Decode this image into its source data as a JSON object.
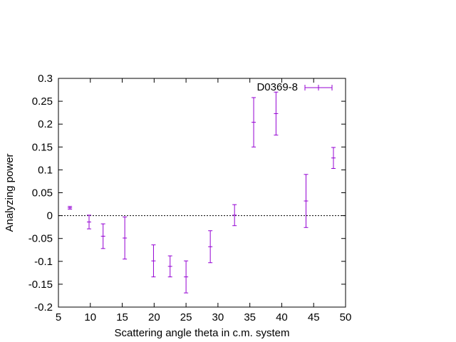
{
  "chart_data": {
    "type": "scatter",
    "title": "",
    "xlabel": "Scattering angle theta in c.m. system",
    "ylabel": "Analyzing power",
    "xlim": [
      5,
      50
    ],
    "ylim": [
      -0.2,
      0.3
    ],
    "xticks": [
      5,
      10,
      15,
      20,
      25,
      30,
      35,
      40,
      45,
      50
    ],
    "yticks": [
      -0.2,
      -0.15,
      -0.1,
      -0.05,
      0,
      0.05,
      0.1,
      0.15,
      0.2,
      0.25,
      0.3
    ],
    "xtick_labels": [
      "5",
      "10",
      "15",
      "20",
      "25",
      "30",
      "35",
      "40",
      "45",
      "50"
    ],
    "ytick_labels": [
      "-0.2",
      "-0.15",
      "-0.1",
      "-0.05",
      "0",
      "0.05",
      "0.1",
      "0.15",
      "0.2",
      "0.25",
      "0.3"
    ],
    "zero_line": true,
    "grid": false,
    "legend_position": "top-right",
    "series": [
      {
        "name": "D0369-8",
        "color": "#9400d3",
        "points": [
          {
            "x": 6.8,
            "y": 0.017,
            "err": 0.003
          },
          {
            "x": 9.8,
            "y": -0.014,
            "err": 0.015
          },
          {
            "x": 12.0,
            "y": -0.045,
            "err": 0.027
          },
          {
            "x": 15.4,
            "y": -0.049,
            "err": 0.046
          },
          {
            "x": 19.9,
            "y": -0.099,
            "err": 0.035
          },
          {
            "x": 22.5,
            "y": -0.111,
            "err": 0.023
          },
          {
            "x": 25.0,
            "y": -0.134,
            "err": 0.035
          },
          {
            "x": 28.8,
            "y": -0.068,
            "err": 0.035
          },
          {
            "x": 32.6,
            "y": 0.001,
            "err": 0.023
          },
          {
            "x": 35.6,
            "y": 0.204,
            "err": 0.054
          },
          {
            "x": 39.1,
            "y": 0.223,
            "err": 0.047
          },
          {
            "x": 43.8,
            "y": 0.032,
            "err": 0.058
          },
          {
            "x": 48.1,
            "y": 0.126,
            "err": 0.023
          }
        ]
      }
    ]
  }
}
